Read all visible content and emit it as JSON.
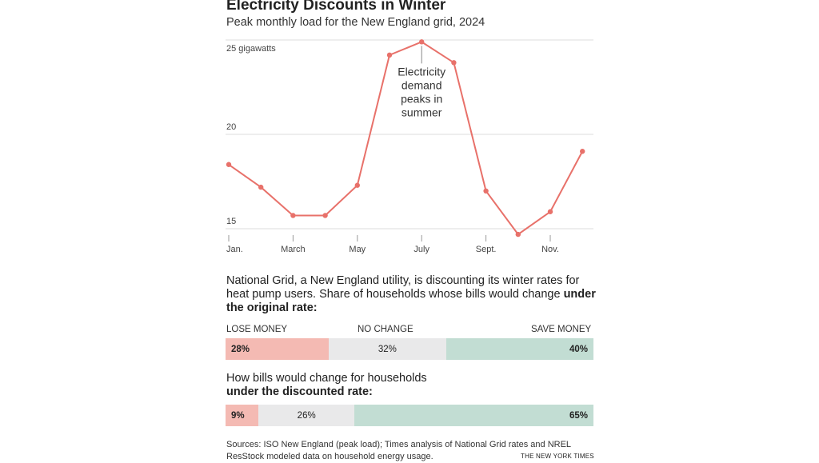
{
  "header": {
    "title": "Electricity Discounts in Winter",
    "subtitle": "Peak monthly load for the New England grid, 2024"
  },
  "chart_data": {
    "type": "line",
    "title": "Peak monthly load for the New England grid, 2024",
    "x": [
      "Jan",
      "Feb",
      "Mar",
      "Apr",
      "May",
      "Jun",
      "Jul",
      "Aug",
      "Sep",
      "Oct",
      "Nov",
      "Dec"
    ],
    "series": [
      {
        "name": "Peak load (GW)",
        "values": [
          18.4,
          17.2,
          15.7,
          15.7,
          17.3,
          24.2,
          24.9,
          23.8,
          17.0,
          14.7,
          15.9,
          19.1
        ],
        "color": "#e8716a"
      }
    ],
    "ylim": [
      15,
      25
    ],
    "yticks": [
      {
        "value": 25,
        "label": "25 gigawatts"
      },
      {
        "value": 20,
        "label": "20"
      },
      {
        "value": 15,
        "label": "15"
      }
    ],
    "xticks": [
      {
        "index": 0,
        "label": "Jan."
      },
      {
        "index": 2,
        "label": "March"
      },
      {
        "index": 4,
        "label": "May"
      },
      {
        "index": 6,
        "label": "July"
      },
      {
        "index": 8,
        "label": "Sept."
      },
      {
        "index": 10,
        "label": "Nov."
      }
    ],
    "annotation": {
      "index": 6,
      "lines": [
        "Electricity",
        "demand",
        "peaks in",
        "summer"
      ]
    },
    "grid": true
  },
  "section1": {
    "text": "National Grid, a New England utility, is discounting its winter rates for heat pump users. Share of households whose bills would change ",
    "bold": "under the original rate:"
  },
  "labels": {
    "lose": "LOSE MONEY",
    "none": "NO CHANGE",
    "save": "SAVE MONEY"
  },
  "bars": [
    {
      "lose": 28,
      "none": 32,
      "save": 40,
      "lose_label": "28%",
      "none_label": "32%",
      "save_label": "40%"
    },
    {
      "lose": 9,
      "none": 26,
      "save": 65,
      "lose_label": "9%",
      "none_label": "26%",
      "save_label": "65%"
    }
  ],
  "section2": {
    "text": "How bills would change for households",
    "bold": "under the discounted rate:"
  },
  "colors": {
    "lose": "#f4bab3",
    "none": "#e9e9ea",
    "save": "#c2ddd3",
    "line": "#e8716a"
  },
  "footer": {
    "sources": "Sources: ISO New England (peak load); Times analysis of National Grid rates and NREL ResStock modeled data on household energy usage.",
    "credit": "THE NEW YORK TIMES"
  }
}
